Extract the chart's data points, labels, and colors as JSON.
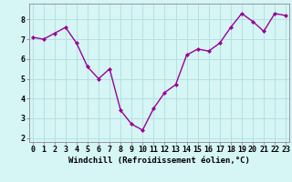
{
  "x": [
    0,
    1,
    2,
    3,
    4,
    5,
    6,
    7,
    8,
    9,
    10,
    11,
    12,
    13,
    14,
    15,
    16,
    17,
    18,
    19,
    20,
    21,
    22,
    23
  ],
  "y": [
    7.1,
    7.0,
    7.3,
    7.6,
    6.8,
    5.6,
    5.0,
    5.5,
    3.4,
    2.7,
    2.4,
    3.5,
    4.3,
    4.7,
    6.2,
    6.5,
    6.4,
    6.8,
    7.6,
    8.3,
    7.9,
    7.4,
    8.3,
    8.2
  ],
  "line_color": "#990099",
  "marker": "D",
  "marker_size": 2.0,
  "linewidth": 1.0,
  "bg_color": "#d6f5f5",
  "grid_color": "#b0dede",
  "xlabel": "Windchill (Refroidissement éolien,°C)",
  "xlabel_fontsize": 6.5,
  "yticks": [
    2,
    3,
    4,
    5,
    6,
    7,
    8
  ],
  "xticks": [
    0,
    1,
    2,
    3,
    4,
    5,
    6,
    7,
    8,
    9,
    10,
    11,
    12,
    13,
    14,
    15,
    16,
    17,
    18,
    19,
    20,
    21,
    22,
    23
  ],
  "ylim": [
    1.8,
    8.8
  ],
  "xlim": [
    -0.3,
    23.3
  ],
  "tick_fontsize": 6.0,
  "spine_color": "#888899"
}
